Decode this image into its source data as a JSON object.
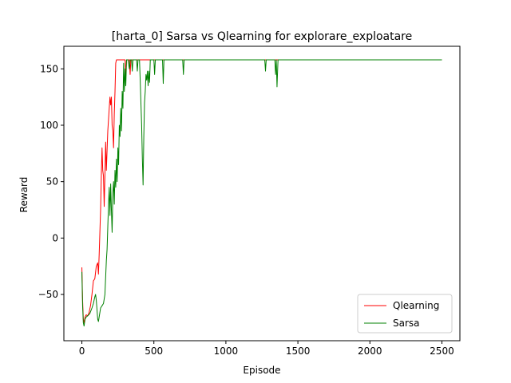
{
  "chart_data": {
    "type": "line",
    "title": "[harta_0] Sarsa vs Qlearning for explorare_exploatare",
    "xlabel": "Episode",
    "ylabel": "Reward",
    "xlim": [
      -125,
      2625
    ],
    "ylim": [
      -91,
      170
    ],
    "xticks": [
      0,
      500,
      1000,
      1500,
      2000,
      2500
    ],
    "yticks": [
      -50,
      0,
      50,
      100,
      150
    ],
    "grid": false,
    "legend_position": "lower-right",
    "series": [
      {
        "name": "Qlearning",
        "color": "#ff0000",
        "points": [
          [
            0,
            -26
          ],
          [
            5,
            -55
          ],
          [
            10,
            -72
          ],
          [
            15,
            -75
          ],
          [
            22,
            -70
          ],
          [
            30,
            -68
          ],
          [
            40,
            -69
          ],
          [
            50,
            -66
          ],
          [
            60,
            -60
          ],
          [
            70,
            -50
          ],
          [
            80,
            -38
          ],
          [
            90,
            -36
          ],
          [
            100,
            -25
          ],
          [
            110,
            -22
          ],
          [
            115,
            -32
          ],
          [
            120,
            -15
          ],
          [
            125,
            5
          ],
          [
            130,
            25
          ],
          [
            135,
            55
          ],
          [
            140,
            80
          ],
          [
            145,
            60
          ],
          [
            150,
            55
          ],
          [
            155,
            28
          ],
          [
            160,
            55
          ],
          [
            165,
            85
          ],
          [
            170,
            60
          ],
          [
            175,
            78
          ],
          [
            180,
            95
          ],
          [
            185,
            105
          ],
          [
            190,
            115
          ],
          [
            195,
            125
          ],
          [
            200,
            118
          ],
          [
            205,
            125
          ],
          [
            210,
            100
          ],
          [
            215,
            95
          ],
          [
            220,
            80
          ],
          [
            225,
            110
          ],
          [
            230,
            130
          ],
          [
            235,
            155
          ],
          [
            240,
            158
          ],
          [
            250,
            158
          ],
          [
            300,
            158
          ],
          [
            305,
            145
          ],
          [
            310,
            158
          ],
          [
            330,
            158
          ],
          [
            335,
            145
          ],
          [
            340,
            158
          ],
          [
            2500,
            158
          ]
        ]
      },
      {
        "name": "Sarsa",
        "color": "#008000",
        "points": [
          [
            0,
            -30
          ],
          [
            5,
            -60
          ],
          [
            10,
            -75
          ],
          [
            15,
            -78
          ],
          [
            22,
            -72
          ],
          [
            30,
            -70
          ],
          [
            40,
            -69
          ],
          [
            55,
            -67
          ],
          [
            70,
            -62
          ],
          [
            80,
            -58
          ],
          [
            90,
            -52
          ],
          [
            95,
            -50
          ],
          [
            100,
            -55
          ],
          [
            110,
            -72
          ],
          [
            115,
            -74
          ],
          [
            120,
            -70
          ],
          [
            130,
            -62
          ],
          [
            140,
            -60
          ],
          [
            150,
            -58
          ],
          [
            160,
            -50
          ],
          [
            170,
            -20
          ],
          [
            175,
            -10
          ],
          [
            180,
            10
          ],
          [
            185,
            30
          ],
          [
            190,
            45
          ],
          [
            195,
            20
          ],
          [
            200,
            48
          ],
          [
            205,
            25
          ],
          [
            210,
            5
          ],
          [
            215,
            40
          ],
          [
            220,
            50
          ],
          [
            225,
            30
          ],
          [
            230,
            60
          ],
          [
            235,
            45
          ],
          [
            240,
            70
          ],
          [
            245,
            50
          ],
          [
            250,
            80
          ],
          [
            255,
            65
          ],
          [
            260,
            100
          ],
          [
            265,
            90
          ],
          [
            270,
            115
          ],
          [
            275,
            95
          ],
          [
            280,
            130
          ],
          [
            285,
            115
          ],
          [
            290,
            155
          ],
          [
            295,
            130
          ],
          [
            300,
            150
          ],
          [
            305,
            135
          ],
          [
            310,
            158
          ],
          [
            320,
            158
          ],
          [
            330,
            150
          ],
          [
            335,
            158
          ],
          [
            345,
            158
          ],
          [
            350,
            148
          ],
          [
            355,
            158
          ],
          [
            380,
            158
          ],
          [
            385,
            148
          ],
          [
            390,
            158
          ],
          [
            400,
            158
          ],
          [
            405,
            140
          ],
          [
            410,
            120
          ],
          [
            415,
            100
          ],
          [
            420,
            70
          ],
          [
            425,
            47
          ],
          [
            430,
            90
          ],
          [
            435,
            120
          ],
          [
            440,
            130
          ],
          [
            445,
            145
          ],
          [
            450,
            140
          ],
          [
            455,
            148
          ],
          [
            460,
            135
          ],
          [
            465,
            148
          ],
          [
            470,
            138
          ],
          [
            475,
            158
          ],
          [
            500,
            158
          ],
          [
            505,
            145
          ],
          [
            510,
            158
          ],
          [
            560,
            158
          ],
          [
            565,
            137
          ],
          [
            570,
            158
          ],
          [
            700,
            158
          ],
          [
            705,
            145
          ],
          [
            710,
            158
          ],
          [
            1270,
            158
          ],
          [
            1275,
            148
          ],
          [
            1280,
            158
          ],
          [
            1340,
            158
          ],
          [
            1345,
            145
          ],
          [
            1350,
            158
          ],
          [
            1355,
            134
          ],
          [
            1362,
            158
          ],
          [
            2500,
            158
          ]
        ]
      }
    ]
  }
}
